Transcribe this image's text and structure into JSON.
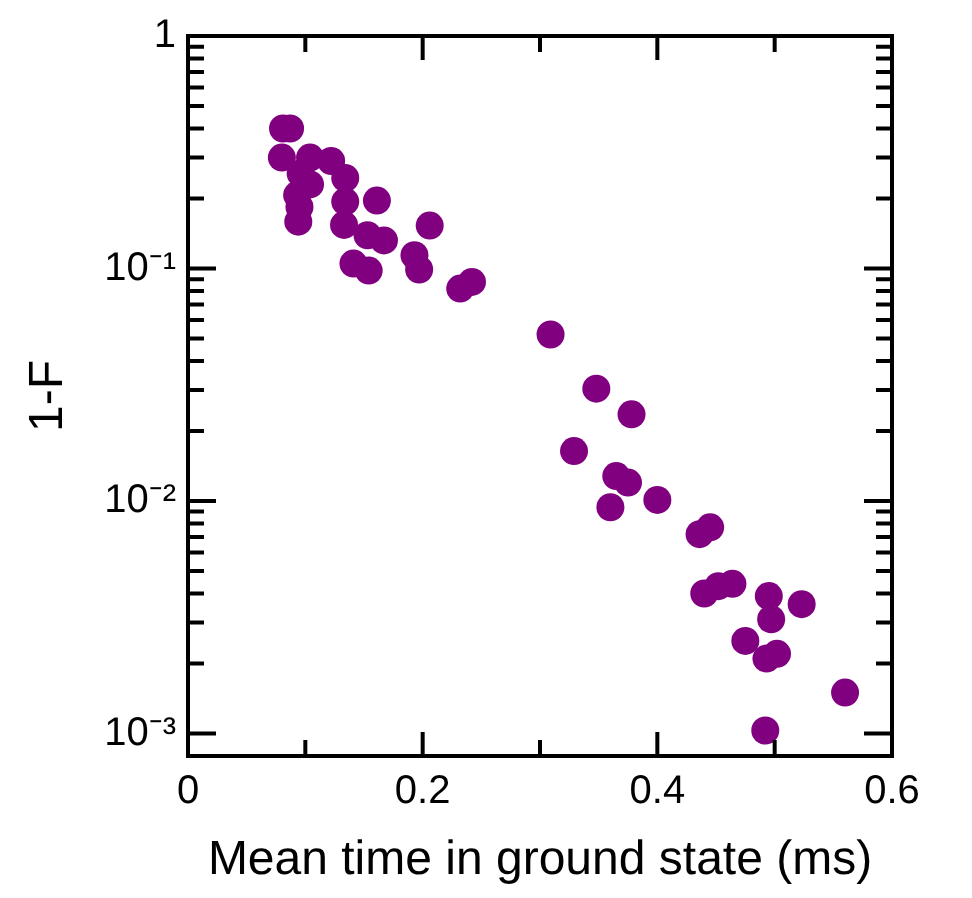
{
  "chart_data": {
    "type": "scatter",
    "xlabel": "Mean time in ground state (ms)",
    "ylabel": "1-F",
    "log": "y",
    "grid": false,
    "legend": false,
    "marker": "circle",
    "xlim": [
      0,
      0.6
    ],
    "xticks": [
      0,
      {
        "value": 0.1,
        "label": null
      },
      0.2,
      {
        "value": 0.3,
        "label": null
      },
      0.4,
      {
        "value": 0.5,
        "label": null
      },
      0.6
    ],
    "ylim": [
      0.0008,
      1
    ],
    "yticks": [
      {
        "value": 0.001,
        "label": "10⁻³"
      },
      {
        "value": 0.002,
        "label": null
      },
      {
        "value": 0.003,
        "label": null
      },
      {
        "value": 0.004,
        "label": null
      },
      {
        "value": 0.005,
        "label": null
      },
      {
        "value": 0.006,
        "label": null
      },
      {
        "value": 0.007,
        "label": null
      },
      {
        "value": 0.008,
        "label": null
      },
      {
        "value": 0.009,
        "label": null
      },
      {
        "value": 0.01,
        "label": "10⁻²"
      },
      {
        "value": 0.02,
        "label": null
      },
      {
        "value": 0.03,
        "label": null
      },
      {
        "value": 0.04,
        "label": null
      },
      {
        "value": 0.05,
        "label": null
      },
      {
        "value": 0.06,
        "label": null
      },
      {
        "value": 0.07,
        "label": null
      },
      {
        "value": 0.08,
        "label": null
      },
      {
        "value": 0.09,
        "label": null
      },
      {
        "value": 0.1,
        "label": "10⁻¹"
      },
      {
        "value": 0.2,
        "label": null
      },
      {
        "value": 0.3,
        "label": null
      },
      {
        "value": 0.4,
        "label": null
      },
      {
        "value": 0.5,
        "label": null
      },
      {
        "value": 0.6,
        "label": null
      },
      {
        "value": 0.7,
        "label": null
      },
      {
        "value": 0.8,
        "label": null
      },
      {
        "value": 0.9,
        "label": null
      },
      {
        "value": 1,
        "label": "1"
      }
    ],
    "series": [
      {
        "color": "#800080",
        "x": [
          0.081,
          0.087,
          0.08,
          0.104,
          0.096,
          0.122,
          0.134,
          0.104,
          0.093,
          0.095,
          0.094,
          0.134,
          0.161,
          0.133,
          0.153,
          0.167,
          0.206,
          0.193,
          0.197,
          0.141,
          0.154,
          0.232,
          0.242,
          0.309,
          0.348,
          0.378,
          0.329,
          0.365,
          0.375,
          0.36,
          0.4,
          0.436,
          0.445,
          0.44,
          0.452,
          0.464,
          0.495,
          0.497,
          0.523,
          0.475,
          0.493,
          0.502,
          0.56,
          0.492
        ],
        "values": [
          0.4,
          0.4,
          0.3,
          0.3,
          0.256,
          0.29,
          0.245,
          0.23,
          0.207,
          0.184,
          0.159,
          0.194,
          0.196,
          0.154,
          0.139,
          0.132,
          0.153,
          0.114,
          0.099,
          0.105,
          0.098,
          0.082,
          0.0875,
          0.052,
          0.0304,
          0.0236,
          0.0164,
          0.0128,
          0.012,
          0.0094,
          0.0101,
          0.0072,
          0.0077,
          0.004,
          0.0043,
          0.0044,
          0.0039,
          0.0031,
          0.0036,
          0.0025,
          0.0021,
          0.0022,
          0.0015,
          0.00103
        ]
      }
    ]
  }
}
